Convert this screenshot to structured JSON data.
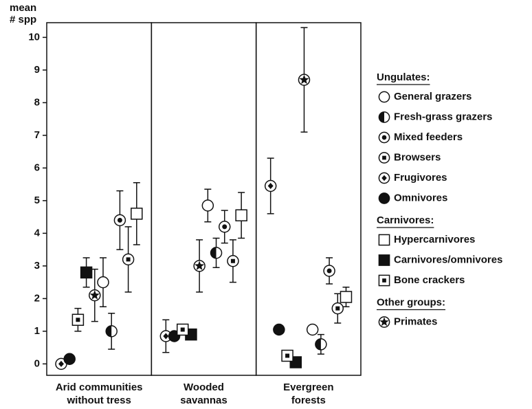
{
  "chart_data": {
    "type": "errorbar_dot",
    "y_label": [
      "mean",
      "# spp"
    ],
    "categories": [
      [
        "Arid communities",
        "without tress"
      ],
      [
        "Wooded",
        "savannas"
      ],
      [
        "Evergreen",
        "forests"
      ]
    ],
    "ylim": [
      -0.35,
      10.45
    ],
    "yticks": [
      0,
      1,
      2,
      3,
      4,
      5,
      6,
      7,
      8,
      9,
      10
    ],
    "legend_groups": [
      {
        "title": "Ungulates:",
        "members": [
          0,
          1,
          2,
          3,
          4,
          5
        ]
      },
      {
        "title": "Carnivores:",
        "members": [
          6,
          7,
          8
        ]
      },
      {
        "title": "Other groups:",
        "members": [
          9
        ]
      }
    ],
    "series": [
      {
        "name": "General grazers",
        "marker": "circle-open",
        "values": [
          2.5,
          4.85,
          1.05
        ],
        "errors": [
          0.75,
          0.5,
          null
        ]
      },
      {
        "name": "Fresh-grass grazers",
        "marker": "circle-half",
        "values": [
          1.0,
          3.4,
          0.6
        ],
        "errors": [
          0.55,
          0.45,
          0.3
        ]
      },
      {
        "name": "Mixed feeders",
        "marker": "circle-dot",
        "values": [
          4.4,
          4.2,
          2.85
        ],
        "errors": [
          0.9,
          0.5,
          0.4
        ]
      },
      {
        "name": "Browsers",
        "marker": "circle-square",
        "values": [
          3.2,
          3.15,
          1.7
        ],
        "errors": [
          1.0,
          0.65,
          0.45
        ]
      },
      {
        "name": "Frugivores",
        "marker": "circle-diamond",
        "values": [
          0.0,
          0.85,
          5.45
        ],
        "errors": [
          null,
          0.5,
          0.85
        ]
      },
      {
        "name": "Omnivores",
        "marker": "circle-filled",
        "values": [
          0.15,
          0.85,
          1.05
        ],
        "errors": [
          null,
          null,
          null
        ]
      },
      {
        "name": "Hypercarnivores",
        "marker": "square-open",
        "values": [
          4.6,
          4.55,
          2.05
        ],
        "errors": [
          0.95,
          0.7,
          0.3
        ]
      },
      {
        "name": "Carnivores/omnivores",
        "marker": "square-filled",
        "values": [
          2.8,
          0.9,
          0.05
        ],
        "errors": [
          0.45,
          0.15,
          null
        ]
      },
      {
        "name": "Bone crackers",
        "marker": "square-dot",
        "values": [
          1.35,
          1.05,
          0.25
        ],
        "errors": [
          0.35,
          0.1,
          null
        ]
      },
      {
        "name": "Primates",
        "marker": "circle-star",
        "values": [
          2.1,
          3.0,
          8.7
        ],
        "errors": [
          0.8,
          0.8,
          1.6
        ]
      }
    ]
  }
}
